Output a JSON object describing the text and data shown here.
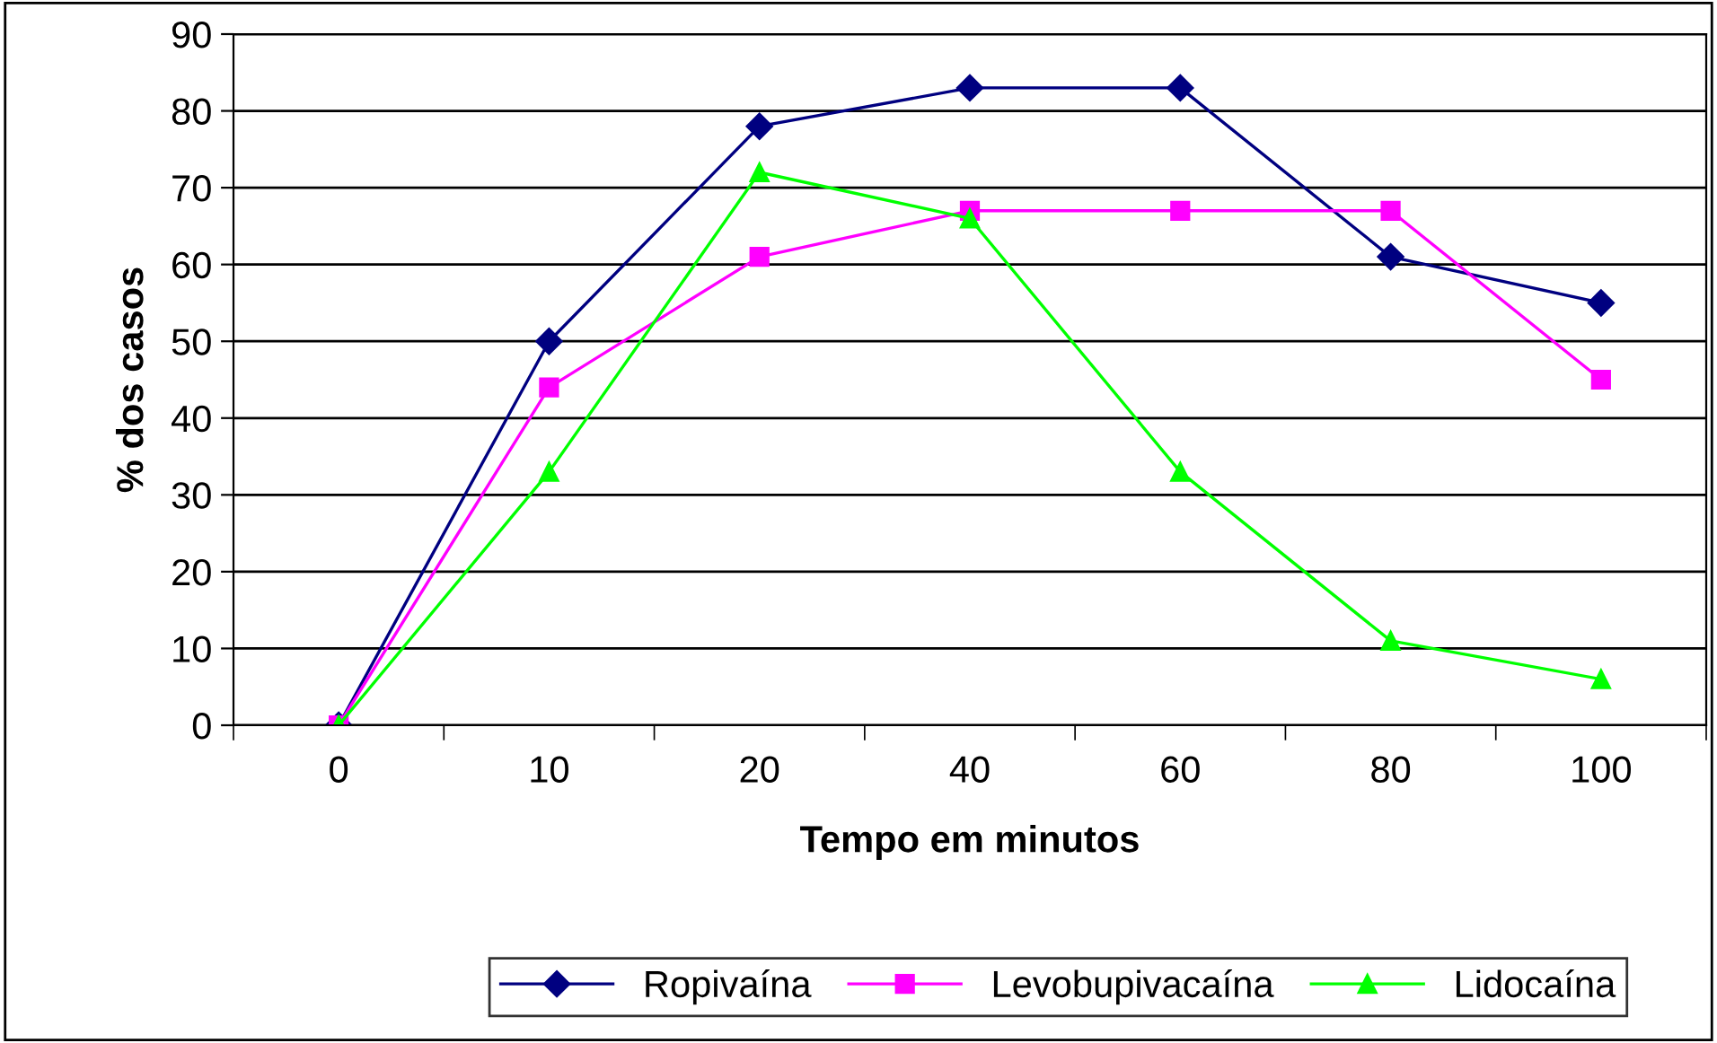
{
  "chart_data": {
    "type": "line",
    "xlabel": "Tempo em minutos",
    "ylabel": "% dos casos",
    "categories": [
      "0",
      "10",
      "20",
      "40",
      "60",
      "80",
      "100"
    ],
    "series": [
      {
        "name": "Ropivaína",
        "color": "#000080",
        "marker": "diamond",
        "values": [
          0,
          50,
          78,
          83,
          83,
          61,
          55
        ]
      },
      {
        "name": "Levobupivacaína",
        "color": "#ff00ff",
        "marker": "square",
        "values": [
          0,
          44,
          61,
          67,
          67,
          67,
          45
        ]
      },
      {
        "name": "Lidocaína",
        "color": "#00ff00",
        "marker": "triangle",
        "values": [
          0,
          33,
          72,
          66,
          33,
          11,
          6
        ]
      }
    ],
    "ylim": [
      0,
      90
    ],
    "yticks": [
      0,
      10,
      20,
      30,
      40,
      50,
      60,
      70,
      80,
      90
    ],
    "grid": "y",
    "legend": "bottom",
    "line_style": "solid"
  }
}
